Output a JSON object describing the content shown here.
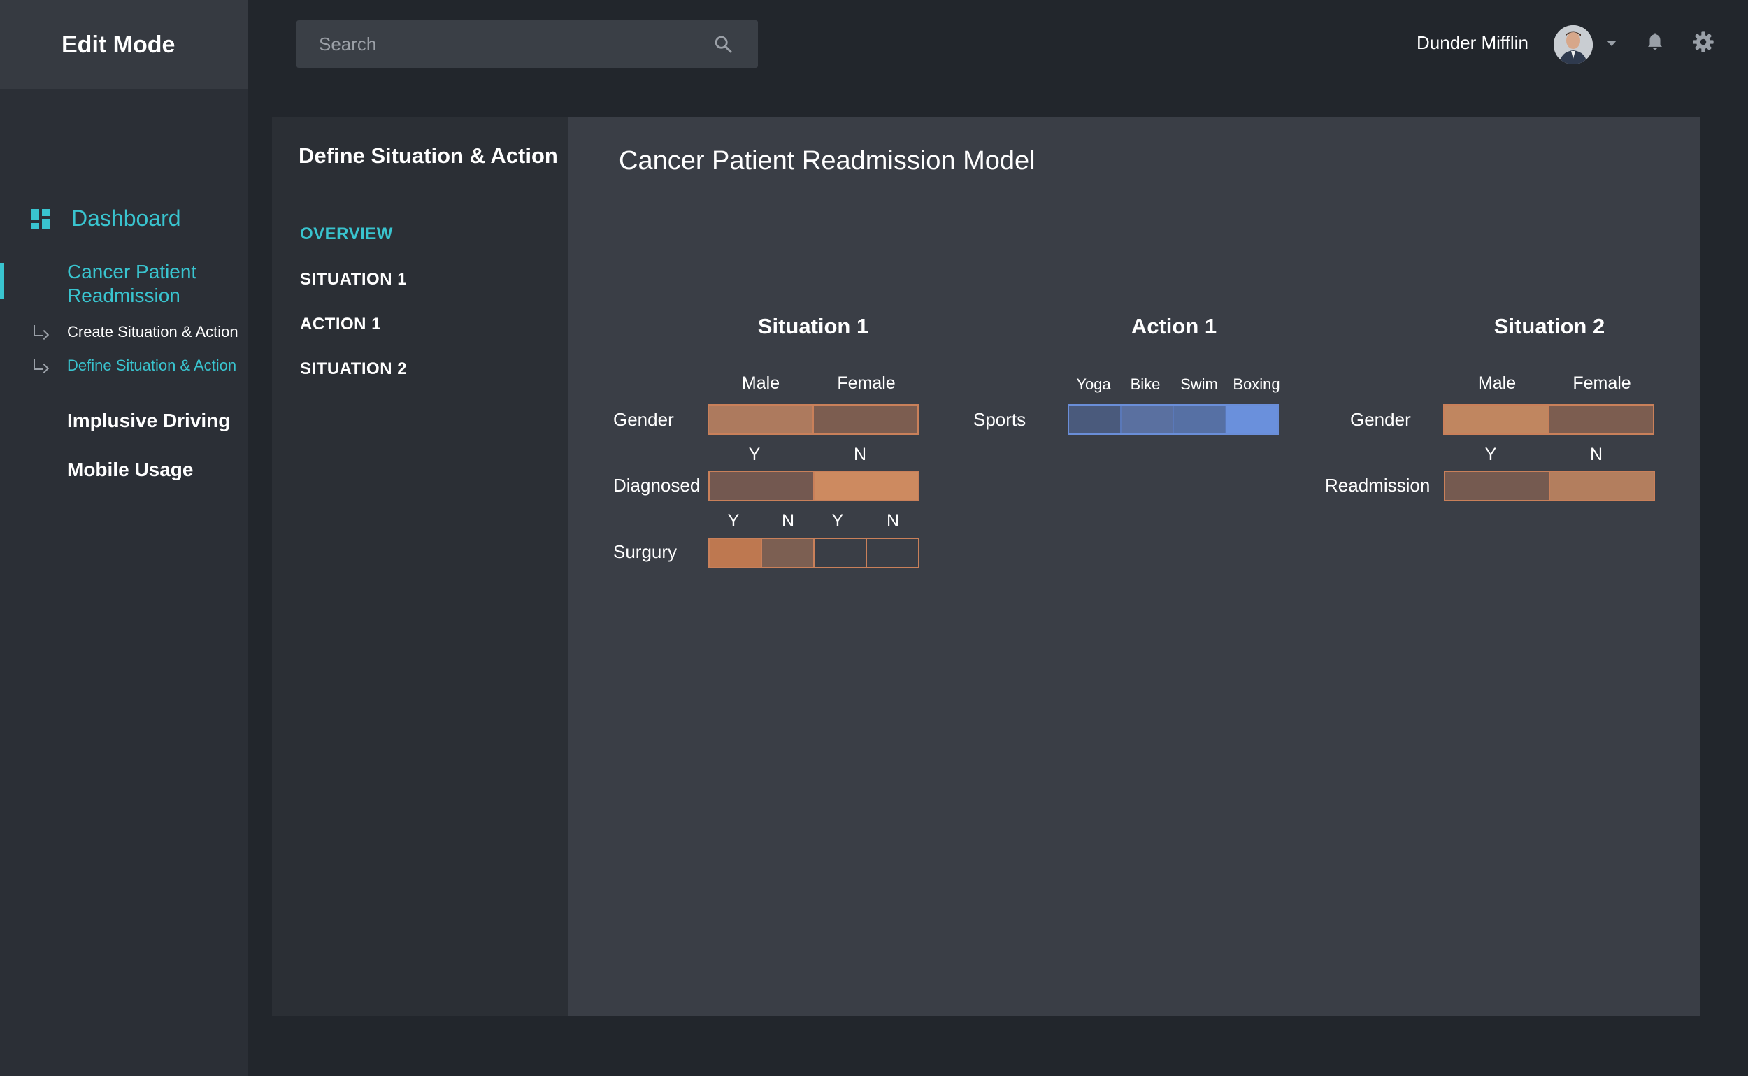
{
  "sidebar": {
    "title": "Edit Mode",
    "dashboard": "Dashboard",
    "active_item": "Cancer Patient Readmission",
    "sub_items": [
      "Create Situation & Action",
      "Define Situation & Action"
    ],
    "items": [
      "Implusive Driving",
      "Mobile Usage"
    ]
  },
  "topbar": {
    "search_placeholder": "Search",
    "user_name": "Dunder Mifflin"
  },
  "panel": {
    "left_title": "Define Situation & Action",
    "menu": [
      "OVERVIEW",
      "SITUATION 1",
      "ACTION 1",
      "SITUATION 2"
    ],
    "model_title": "Cancer Patient Readmission Model"
  },
  "situation1": {
    "title": "Situation 1",
    "gender": {
      "label": "Gender",
      "options": [
        "Male",
        "Female"
      ],
      "colors": [
        "#ad7a5e",
        "#7c5d50"
      ]
    },
    "diagnosed": {
      "label": "Diagnosed",
      "options": [
        "Y",
        "N"
      ],
      "colors": [
        "#735850",
        "#cd8a60"
      ]
    },
    "surgury": {
      "label": "Surgury",
      "options": [
        "Y",
        "N",
        "Y",
        "N"
      ],
      "colors": [
        "#be7850",
        "#7c5f52",
        "#3a3e46",
        "#3a3e46"
      ]
    }
  },
  "action1": {
    "title": "Action 1",
    "sports": {
      "label": "Sports",
      "options": [
        "Yoga",
        "Bike",
        "Swim",
        "Boxing"
      ],
      "colors": [
        "#4a5a7c",
        "#5a70a0",
        "#5670a4",
        "#6a90dc"
      ]
    }
  },
  "situation2": {
    "title": "Situation 2",
    "gender": {
      "label": "Gender",
      "options": [
        "Male",
        "Female"
      ],
      "colors": [
        "#c08660",
        "#7c5d50"
      ]
    },
    "readmission": {
      "label": "Readmission",
      "options": [
        "Y",
        "N"
      ],
      "colors": [
        "#755a50",
        "#b37e5e"
      ]
    }
  }
}
